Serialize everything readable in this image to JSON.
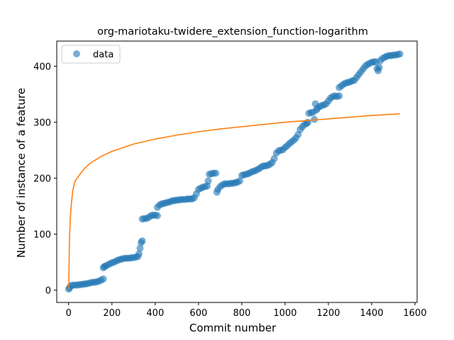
{
  "chart_data": {
    "type": "scatter",
    "title": "org-mariotaku-twidere_extension_function-logarithm",
    "xlabel": "Commit number",
    "ylabel": "Number of instance of a feature",
    "xlim": [
      -55,
      1610
    ],
    "ylim": [
      -22,
      445
    ],
    "xticks": [
      0,
      200,
      400,
      600,
      800,
      1000,
      1200,
      1400,
      1600
    ],
    "yticks": [
      0,
      100,
      200,
      300,
      400
    ],
    "grid": false,
    "legend": {
      "placement": "top-left",
      "entries": [
        "data"
      ]
    },
    "series": [
      {
        "name": "data",
        "kind": "scatter",
        "color": "#1f77b4",
        "points": [
          [
            0,
            2
          ],
          [
            5,
            4
          ],
          [
            10,
            8
          ],
          [
            20,
            9
          ],
          [
            30,
            9
          ],
          [
            40,
            9
          ],
          [
            50,
            10
          ],
          [
            60,
            10
          ],
          [
            70,
            11
          ],
          [
            80,
            11
          ],
          [
            90,
            12
          ],
          [
            100,
            13
          ],
          [
            110,
            14
          ],
          [
            120,
            14
          ],
          [
            130,
            15
          ],
          [
            140,
            16
          ],
          [
            150,
            18
          ],
          [
            160,
            20
          ],
          [
            160,
            40
          ],
          [
            165,
            42
          ],
          [
            170,
            43
          ],
          [
            180,
            45
          ],
          [
            190,
            47
          ],
          [
            200,
            49
          ],
          [
            210,
            50
          ],
          [
            220,
            52
          ],
          [
            230,
            54
          ],
          [
            240,
            55
          ],
          [
            250,
            56
          ],
          [
            260,
            57
          ],
          [
            270,
            57
          ],
          [
            280,
            57
          ],
          [
            290,
            58
          ],
          [
            300,
            58
          ],
          [
            310,
            59
          ],
          [
            320,
            60
          ],
          [
            325,
            65
          ],
          [
            330,
            75
          ],
          [
            335,
            85
          ],
          [
            340,
            88
          ],
          [
            340,
            127
          ],
          [
            350,
            128
          ],
          [
            360,
            128
          ],
          [
            370,
            130
          ],
          [
            380,
            133
          ],
          [
            390,
            134
          ],
          [
            400,
            134
          ],
          [
            410,
            133
          ],
          [
            410,
            148
          ],
          [
            420,
            152
          ],
          [
            430,
            154
          ],
          [
            440,
            155
          ],
          [
            450,
            156
          ],
          [
            460,
            157
          ],
          [
            470,
            158
          ],
          [
            480,
            160
          ],
          [
            490,
            160
          ],
          [
            500,
            161
          ],
          [
            510,
            161
          ],
          [
            520,
            162
          ],
          [
            530,
            162
          ],
          [
            540,
            162
          ],
          [
            550,
            163
          ],
          [
            560,
            163
          ],
          [
            570,
            163
          ],
          [
            580,
            165
          ],
          [
            590,
            172
          ],
          [
            600,
            180
          ],
          [
            610,
            182
          ],
          [
            620,
            184
          ],
          [
            630,
            185
          ],
          [
            640,
            186
          ],
          [
            645,
            195
          ],
          [
            650,
            207
          ],
          [
            660,
            208
          ],
          [
            670,
            209
          ],
          [
            680,
            209
          ],
          [
            685,
            175
          ],
          [
            690,
            180
          ],
          [
            700,
            185
          ],
          [
            710,
            188
          ],
          [
            720,
            190
          ],
          [
            730,
            190
          ],
          [
            740,
            190
          ],
          [
            750,
            191
          ],
          [
            760,
            191
          ],
          [
            770,
            192
          ],
          [
            780,
            193
          ],
          [
            790,
            195
          ],
          [
            800,
            205
          ],
          [
            810,
            206
          ],
          [
            820,
            207
          ],
          [
            830,
            208
          ],
          [
            840,
            210
          ],
          [
            850,
            212
          ],
          [
            860,
            213
          ],
          [
            870,
            215
          ],
          [
            880,
            217
          ],
          [
            890,
            220
          ],
          [
            900,
            222
          ],
          [
            910,
            222
          ],
          [
            920,
            223
          ],
          [
            930,
            225
          ],
          [
            940,
            228
          ],
          [
            950,
            235
          ],
          [
            960,
            245
          ],
          [
            970,
            249
          ],
          [
            980,
            250
          ],
          [
            990,
            251
          ],
          [
            1000,
            255
          ],
          [
            1010,
            258
          ],
          [
            1020,
            262
          ],
          [
            1030,
            265
          ],
          [
            1040,
            268
          ],
          [
            1050,
            272
          ],
          [
            1060,
            278
          ],
          [
            1070,
            287
          ],
          [
            1080,
            292
          ],
          [
            1090,
            296
          ],
          [
            1100,
            298
          ],
          [
            1105,
            300
          ],
          [
            1110,
            316
          ],
          [
            1120,
            317
          ],
          [
            1130,
            318
          ],
          [
            1135,
            305
          ],
          [
            1140,
            333
          ],
          [
            1145,
            322
          ],
          [
            1150,
            325
          ],
          [
            1160,
            328
          ],
          [
            1170,
            330
          ],
          [
            1180,
            331
          ],
          [
            1190,
            333
          ],
          [
            1200,
            338
          ],
          [
            1210,
            343
          ],
          [
            1220,
            346
          ],
          [
            1230,
            347
          ],
          [
            1240,
            346
          ],
          [
            1250,
            347
          ],
          [
            1250,
            362
          ],
          [
            1260,
            365
          ],
          [
            1270,
            368
          ],
          [
            1280,
            370
          ],
          [
            1290,
            371
          ],
          [
            1300,
            372
          ],
          [
            1310,
            374
          ],
          [
            1320,
            375
          ],
          [
            1330,
            380
          ],
          [
            1340,
            385
          ],
          [
            1350,
            390
          ],
          [
            1360,
            395
          ],
          [
            1370,
            400
          ],
          [
            1380,
            403
          ],
          [
            1390,
            405
          ],
          [
            1400,
            407
          ],
          [
            1410,
            408
          ],
          [
            1420,
            408
          ],
          [
            1425,
            396
          ],
          [
            1430,
            392
          ],
          [
            1435,
            398
          ],
          [
            1440,
            410
          ],
          [
            1450,
            414
          ],
          [
            1460,
            416
          ],
          [
            1470,
            418
          ],
          [
            1480,
            419
          ],
          [
            1490,
            419
          ],
          [
            1500,
            420
          ],
          [
            1510,
            420
          ],
          [
            1520,
            421
          ],
          [
            1530,
            422
          ]
        ]
      },
      {
        "kind": "line",
        "color": "#ff7f0e",
        "x": [
          1,
          2,
          3,
          5,
          8,
          12,
          20,
          30,
          50,
          75,
          100,
          150,
          200,
          300,
          400,
          500,
          600,
          700,
          800,
          900,
          1000,
          1100,
          1200,
          1300,
          1400,
          1530
        ],
        "y": [
          2,
          50,
          74,
          104,
          130,
          153,
          180,
          195,
          206,
          218,
          227,
          239,
          248,
          261,
          270,
          277,
          283,
          288,
          292,
          296,
          300,
          303,
          306,
          309,
          312,
          315
        ]
      }
    ]
  }
}
